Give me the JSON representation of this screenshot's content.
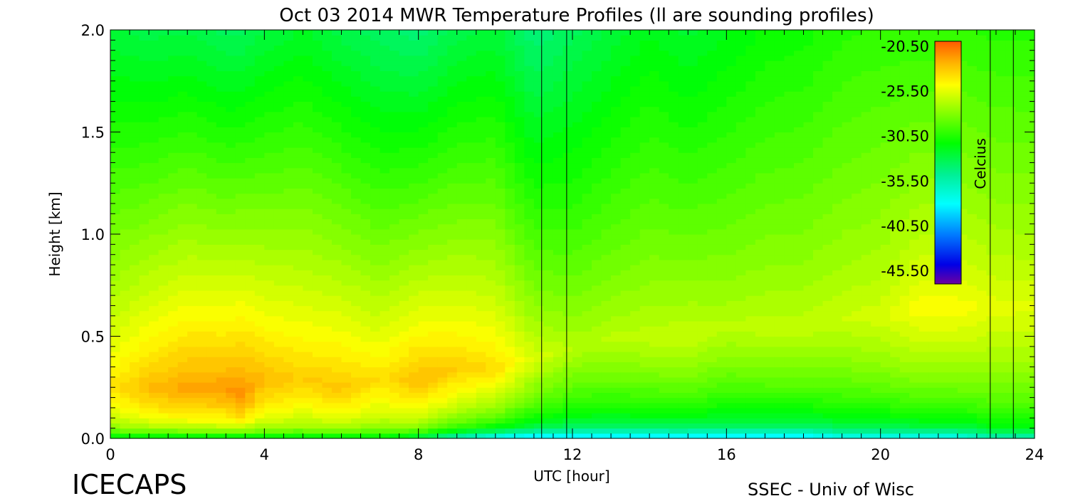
{
  "chart_data": {
    "type": "heatmap",
    "title": "Oct 03 2014 MWR Temperature Profiles (ll are sounding profiles)",
    "xlabel": "UTC [hour]",
    "ylabel": "Height [km]",
    "xlim": [
      0,
      24
    ],
    "ylim": [
      0,
      2.0
    ],
    "x_ticks": [
      "0",
      "4",
      "8",
      "12",
      "16",
      "20",
      "24"
    ],
    "y_ticks": [
      "0.0",
      "0.5",
      "1.0",
      "1.5",
      "2.0"
    ],
    "colorbar": {
      "label": "Celcius",
      "ticks": [
        "-20.50",
        "-25.50",
        "-30.50",
        "-35.50",
        "-40.50",
        "-45.50"
      ],
      "range": [
        -47,
        -20
      ]
    },
    "sounding_profiles_utc": [
      11.2,
      11.85,
      22.85,
      23.45
    ],
    "x_hours": [
      0,
      1,
      2,
      3,
      3.4,
      4,
      5,
      6,
      7,
      8,
      9,
      10,
      11,
      12,
      13,
      14,
      15,
      16,
      17,
      18,
      19,
      20,
      21,
      22,
      23,
      24
    ],
    "peak_temp_c": [
      -24,
      -22.6,
      -21.8,
      -21.7,
      -21.2,
      -22.6,
      -23.2,
      -22.9,
      -23.8,
      -22.6,
      -23.2,
      -23.7,
      -25.8,
      -26.8,
      -26.6,
      -26.4,
      -26.2,
      -26.6,
      -26.4,
      -26.4,
      -26.2,
      -25.9,
      -24.9,
      -24.9,
      -25.5,
      -25.6
    ],
    "peak_height_km": [
      0.25,
      0.25,
      0.25,
      0.25,
      0.22,
      0.3,
      0.3,
      0.25,
      0.3,
      0.3,
      0.35,
      0.35,
      0.4,
      0.45,
      0.5,
      0.5,
      0.5,
      0.55,
      0.55,
      0.55,
      0.6,
      0.6,
      0.65,
      0.65,
      0.65,
      0.65
    ],
    "surface_temp_c": [
      -31,
      -31,
      -31,
      -31,
      -31,
      -31,
      -31,
      -31,
      -31,
      -32,
      -35,
      -37,
      -38,
      -38,
      -38,
      -38,
      -38,
      -38,
      -38,
      -38,
      -37,
      -37,
      -37,
      -37,
      -35,
      -35
    ],
    "top_temp_c": [
      -32.6,
      -33,
      -32.8,
      -33.4,
      -33.4,
      -32.8,
      -32.2,
      -33,
      -33.6,
      -34,
      -33,
      -32.6,
      -34.2,
      -33.4,
      -32.6,
      -31.8,
      -32.4,
      -31.8,
      -31.2,
      -31,
      -30.4,
      -30.2,
      -30.2,
      -30.2,
      -30.4,
      -30.4
    ]
  },
  "footer": {
    "left": "ICECAPS",
    "right": "SSEC - Univ of Wisc"
  }
}
